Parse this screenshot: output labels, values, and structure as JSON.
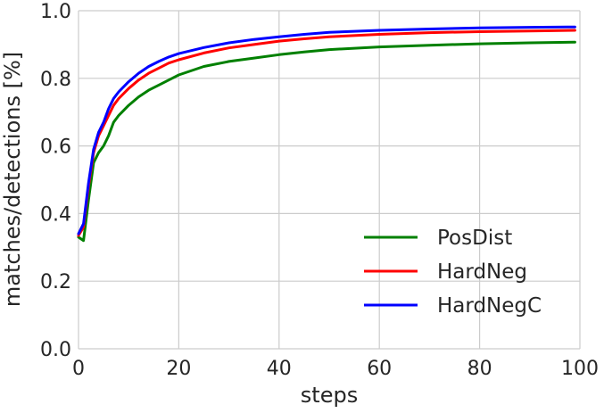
{
  "chart_data": {
    "type": "line",
    "xlabel": "steps",
    "ylabel": "matches/detections [%]",
    "xlim": [
      0,
      100
    ],
    "ylim": [
      0.0,
      1.0
    ],
    "xticks": [
      "0",
      "20",
      "40",
      "60",
      "80",
      "100"
    ],
    "yticks": [
      "0.0",
      "0.2",
      "0.4",
      "0.6",
      "0.8",
      "1.0"
    ],
    "grid": true,
    "legend_position": "lower-right",
    "x": [
      0,
      1,
      2,
      3,
      4,
      5,
      6,
      7,
      8,
      10,
      12,
      14,
      16,
      18,
      20,
      25,
      30,
      35,
      40,
      45,
      50,
      60,
      70,
      80,
      90,
      99
    ],
    "series": [
      {
        "name": "PosDist",
        "color": "#008000",
        "values": [
          0.33,
          0.32,
          0.44,
          0.55,
          0.58,
          0.6,
          0.63,
          0.67,
          0.69,
          0.72,
          0.745,
          0.765,
          0.78,
          0.795,
          0.81,
          0.835,
          0.85,
          0.86,
          0.87,
          0.878,
          0.885,
          0.893,
          0.898,
          0.902,
          0.905,
          0.907
        ]
      },
      {
        "name": "HardNeg",
        "color": "#ff0000",
        "values": [
          0.335,
          0.36,
          0.48,
          0.58,
          0.63,
          0.66,
          0.69,
          0.72,
          0.74,
          0.77,
          0.795,
          0.815,
          0.83,
          0.845,
          0.855,
          0.875,
          0.89,
          0.9,
          0.91,
          0.917,
          0.923,
          0.93,
          0.935,
          0.938,
          0.94,
          0.942
        ]
      },
      {
        "name": "HardNegC",
        "color": "#0000ff",
        "values": [
          0.34,
          0.37,
          0.49,
          0.59,
          0.64,
          0.67,
          0.71,
          0.74,
          0.76,
          0.79,
          0.815,
          0.835,
          0.85,
          0.863,
          0.873,
          0.891,
          0.905,
          0.915,
          0.923,
          0.93,
          0.936,
          0.942,
          0.946,
          0.949,
          0.951,
          0.952
        ]
      }
    ]
  }
}
